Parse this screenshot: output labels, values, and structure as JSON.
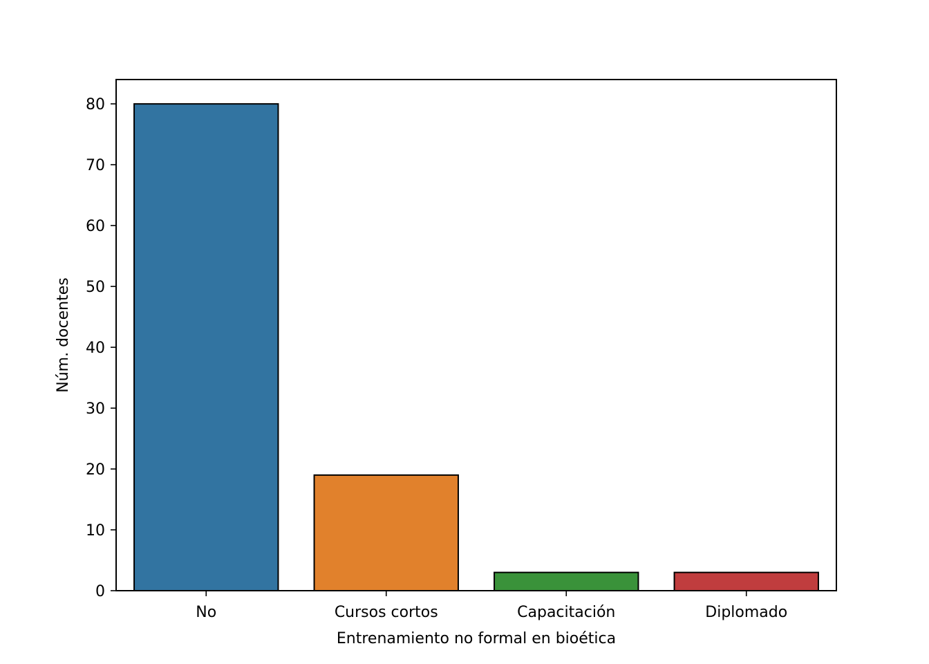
{
  "chart_data": {
    "type": "bar",
    "title": "",
    "xlabel": "Entrenamiento no formal en bioética",
    "ylabel": "Núm. docentes",
    "categories": [
      "No",
      "Cursos cortos",
      "Capacitación",
      "Diplomado"
    ],
    "values": [
      80,
      19,
      3,
      3
    ],
    "colors": [
      "#3274a1",
      "#e1812c",
      "#3a923a",
      "#c03d3e"
    ],
    "edge_color": "#000000",
    "ylim": [
      0,
      84
    ],
    "yticks": [
      0,
      10,
      20,
      30,
      40,
      50,
      60,
      70,
      80
    ],
    "grid": false,
    "legend": "none"
  }
}
